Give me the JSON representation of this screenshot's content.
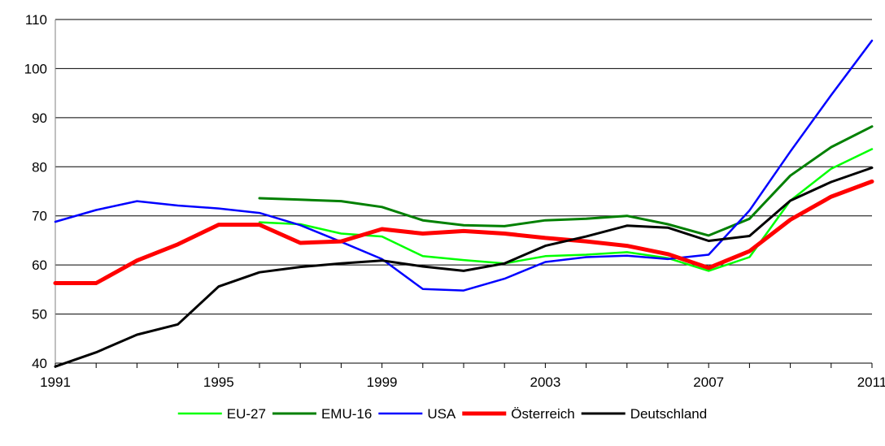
{
  "chart_data": {
    "type": "line",
    "title": "",
    "xlabel": "",
    "ylabel": "",
    "x": [
      1991,
      1992,
      1993,
      1994,
      1995,
      1996,
      1997,
      1998,
      1999,
      2000,
      2001,
      2002,
      2003,
      2004,
      2005,
      2006,
      2007,
      2008,
      2009,
      2010,
      2011
    ],
    "xticks": [
      "1991",
      "1995",
      "1999",
      "2003",
      "2007",
      "2011"
    ],
    "yticks": [
      "40",
      "50",
      "60",
      "70",
      "80",
      "90",
      "100",
      "110"
    ],
    "ylim": [
      40,
      110
    ],
    "grid": "horizontal",
    "legend_position": "bottom",
    "series": [
      {
        "name": "EU-27",
        "color": "#00ff00",
        "width": 2.5,
        "values": [
          null,
          null,
          null,
          null,
          null,
          68.7,
          68.3,
          66.4,
          65.8,
          61.8,
          61.0,
          60.3,
          61.8,
          62.1,
          62.6,
          61.4,
          58.8,
          61.6,
          73.1,
          79.6,
          83.6
        ]
      },
      {
        "name": "EMU-16",
        "color": "#008000",
        "width": 3,
        "values": [
          null,
          null,
          null,
          null,
          null,
          73.6,
          73.3,
          73.0,
          71.8,
          69.1,
          68.1,
          67.9,
          69.1,
          69.4,
          70.0,
          68.3,
          66.0,
          69.4,
          78.2,
          84.0,
          88.2
        ]
      },
      {
        "name": "USA",
        "color": "#0000ff",
        "width": 2.5,
        "values": [
          68.8,
          71.2,
          73.0,
          72.1,
          71.5,
          70.6,
          68.1,
          64.7,
          61.2,
          55.1,
          54.8,
          57.2,
          60.6,
          61.6,
          61.9,
          61.2,
          62.1,
          71.1,
          83.1,
          94.6,
          105.7
        ]
      },
      {
        "name": "Österreich",
        "color": "#ff0000",
        "width": 5,
        "values": [
          56.3,
          56.3,
          60.9,
          64.2,
          68.2,
          68.2,
          64.5,
          64.8,
          67.3,
          66.4,
          66.9,
          66.4,
          65.5,
          64.8,
          63.9,
          62.2,
          59.4,
          62.8,
          69.2,
          73.9,
          77.0
        ]
      },
      {
        "name": "Deutschland",
        "color": "#000000",
        "width": 3,
        "values": [
          39.3,
          42.2,
          45.8,
          47.9,
          55.6,
          58.5,
          59.6,
          60.3,
          60.9,
          59.7,
          58.8,
          60.3,
          63.9,
          65.8,
          68.0,
          67.6,
          64.9,
          65.9,
          73.1,
          76.9,
          79.8
        ]
      }
    ]
  }
}
